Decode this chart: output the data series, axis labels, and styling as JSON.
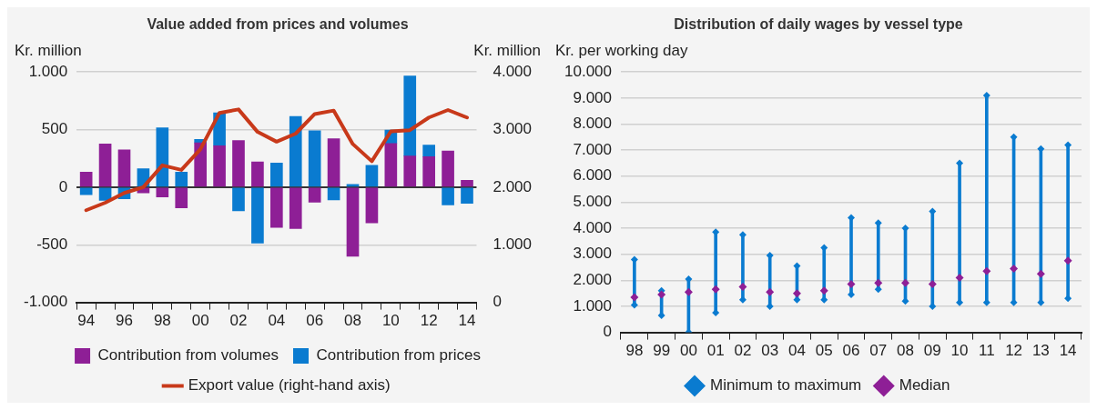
{
  "chart_data": [
    {
      "type": "bar",
      "title": "Value added from prices and volumes",
      "ylabel": "Kr. million",
      "y2label": "Kr. million",
      "categories": [
        "94",
        null,
        "96",
        null,
        "98",
        null,
        "00",
        null,
        "02",
        null,
        "04",
        null,
        "06",
        null,
        "08",
        null,
        "10",
        null,
        "12",
        null,
        "14"
      ],
      "stacked": true,
      "grid": "y",
      "legend": "bottom",
      "ylim": [
        -1000,
        1000
      ],
      "yticks": [
        {
          "value": -1000,
          "label": "-1.000"
        },
        -500,
        0,
        500,
        {
          "value": 1000,
          "label": "1.000"
        }
      ],
      "y2lim": [
        0,
        4000
      ],
      "y2ticks": [
        0,
        {
          "value": 1000,
          "label": "1.000"
        },
        {
          "value": 2000,
          "label": "2.000"
        },
        {
          "value": 3000,
          "label": "3.000"
        },
        {
          "value": 4000,
          "label": "4.000"
        }
      ],
      "series": [
        {
          "name": "Contribution from volumes",
          "color": "#8e1f96",
          "values": [
            130,
            375,
            325,
            -50,
            -85,
            -180,
            385,
            360,
            405,
            220,
            -350,
            -360,
            -130,
            420,
            -600,
            -310,
            380,
            270,
            265,
            315,
            60
          ]
        },
        {
          "name": "Contribution from prices",
          "color": "#0a7bd0",
          "values": [
            -65,
            -115,
            -100,
            160,
            515,
            130,
            30,
            285,
            -205,
            -485,
            210,
            615,
            490,
            -110,
            25,
            190,
            115,
            695,
            100,
            -155,
            -140
          ]
        },
        {
          "name": "Export value (right-hand axis)",
          "type": "line",
          "axis": "y2",
          "color": "#c8391a",
          "marker": "none",
          "values": [
            1600,
            1730,
            1900,
            2000,
            2380,
            2300,
            2660,
            3290,
            3350,
            2960,
            2790,
            2930,
            3270,
            3330,
            2750,
            2450,
            2970,
            2990,
            3210,
            3340,
            3210
          ]
        }
      ]
    },
    {
      "type": "bar",
      "title": "Distribution of daily wages by vessel type",
      "ylabel": "Kr. per working day",
      "categories": [
        "98",
        "99",
        "00",
        "01",
        "02",
        "03",
        "04",
        "05",
        "06",
        "07",
        "08",
        "09",
        "10",
        "11",
        "12",
        "13",
        "14"
      ],
      "grid": "y",
      "legend": "bottom",
      "ylim": [
        0,
        10000
      ],
      "yticks": [
        0,
        {
          "value": 1000,
          "label": "1.000"
        },
        {
          "value": 2000,
          "label": "2.000"
        },
        {
          "value": 3000,
          "label": "3.000"
        },
        {
          "value": 4000,
          "label": "4.000"
        },
        {
          "value": 5000,
          "label": "5.000"
        },
        {
          "value": 6000,
          "label": "6.000"
        },
        {
          "value": 7000,
          "label": "7.000"
        },
        {
          "value": 8000,
          "label": "8.000"
        },
        {
          "value": 9000,
          "label": "9.000"
        },
        {
          "value": 10000,
          "label": "10.000"
        }
      ],
      "series": [
        {
          "name": "Minimum to maximum",
          "color": "#0a7bd0",
          "base": [
            1050,
            650,
            0,
            750,
            1250,
            1000,
            1250,
            1250,
            1450,
            1650,
            1200,
            1000,
            1150,
            1150,
            1150,
            1150,
            1300
          ],
          "values": [
            1750,
            950,
            2050,
            3100,
            2500,
            1950,
            1300,
            2000,
            2950,
            2550,
            2800,
            3650,
            5350,
            7950,
            6350,
            5900,
            5900
          ]
        },
        {
          "type": "scatter",
          "color": "#0a7bd0",
          "marker": "diamond",
          "x": [
            "98",
            "99",
            "00",
            "01",
            "02",
            "03",
            "04",
            "05",
            "06",
            "07",
            "08",
            "09",
            "10",
            "11",
            "12",
            "13",
            "14"
          ],
          "values": [
            2800,
            1600,
            2050,
            3850,
            3750,
            2950,
            2550,
            3250,
            4400,
            4200,
            4000,
            4650,
            6500,
            9100,
            7500,
            7050,
            7200
          ]
        },
        {
          "type": "scatter",
          "color": "#0a7bd0",
          "marker": "diamond",
          "x": [
            "98",
            "99",
            "00",
            "01",
            "02",
            "03",
            "04",
            "05",
            "06",
            "07",
            "08",
            "09",
            "10",
            "11",
            "12",
            "13",
            "14"
          ],
          "values": [
            1050,
            650,
            0,
            750,
            1250,
            1000,
            1250,
            1250,
            1450,
            1650,
            1200,
            1000,
            1150,
            1150,
            1150,
            1150,
            1300
          ]
        },
        {
          "name": "Median",
          "type": "scatter",
          "color": "#8e1f96",
          "marker": "diamond",
          "x": [
            "98",
            "99",
            "00",
            "01",
            "02",
            "03",
            "04",
            "05",
            "06",
            "07",
            "08",
            "09",
            "10",
            "11",
            "12",
            "13",
            "14"
          ],
          "values": [
            1350,
            1450,
            1550,
            1650,
            1750,
            1550,
            1500,
            1600,
            1850,
            1900,
            1900,
            1850,
            2100,
            2350,
            2450,
            2250,
            2750
          ]
        }
      ]
    }
  ]
}
